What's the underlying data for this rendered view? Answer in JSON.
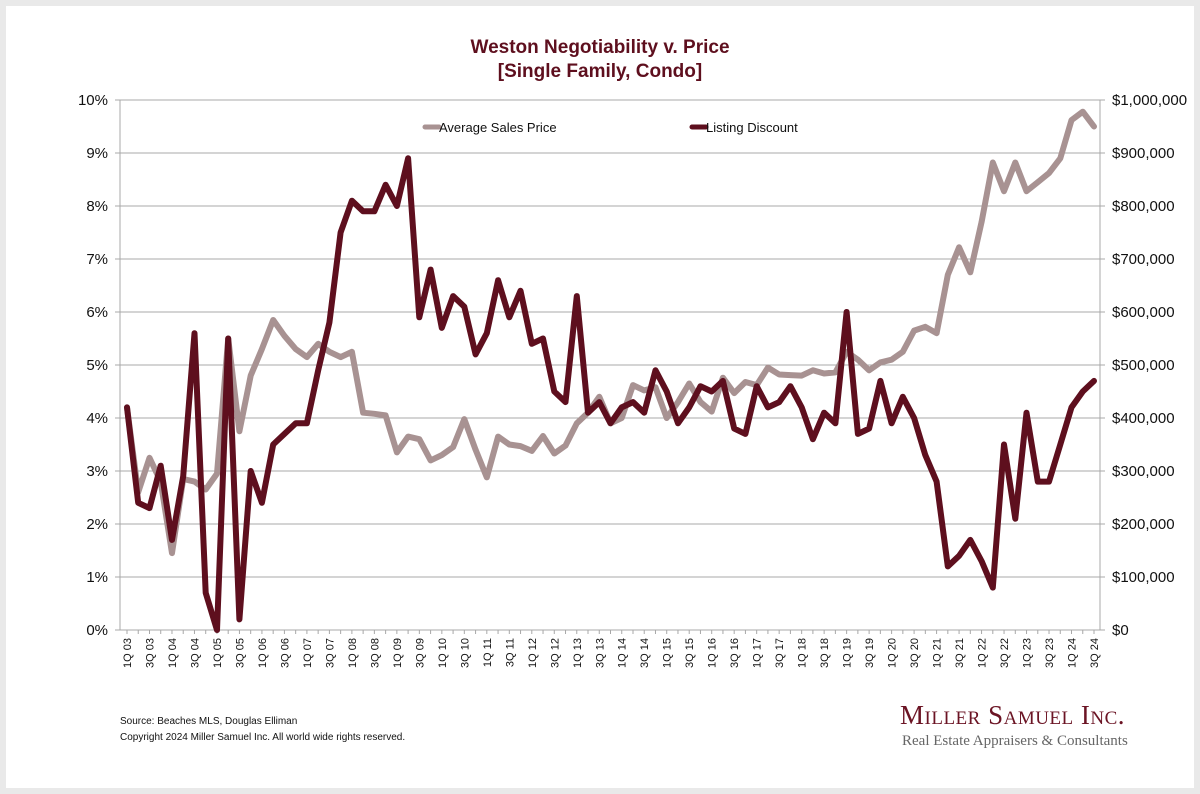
{
  "page": {
    "title_line1": "Weston Negotiability v. Price",
    "title_line2": "[Single Family, Condo]",
    "source_line": "Source: Beaches MLS, Douglas Elliman",
    "copyright_line": "Copyright 2024 Miller Samuel Inc.  All world wide rights reserved.",
    "logo_main": "Miller Samuel Inc.",
    "logo_sub": "Real Estate Appraisers & Consultants"
  },
  "colors": {
    "price": "#a89292",
    "discount": "#5e0f1e",
    "title": "#5e0f1e",
    "grid": "#a8a8a8"
  },
  "chart_data": {
    "type": "line",
    "title": "Weston Negotiability v. Price [Single Family, Condo]",
    "xlabel": "",
    "ylabel_left": "Listing Discount",
    "ylabel_right": "Average Sales Price",
    "ylim_left": [
      0,
      10
    ],
    "ylim_right": [
      0,
      1000000
    ],
    "grid": true,
    "legend_position": "top",
    "left_ticks": [
      "0%",
      "1%",
      "2%",
      "3%",
      "4%",
      "5%",
      "6%",
      "7%",
      "8%",
      "9%",
      "10%"
    ],
    "right_ticks": [
      "$0",
      "$100,000",
      "$200,000",
      "$300,000",
      "$400,000",
      "$500,000",
      "$600,000",
      "$700,000",
      "$800,000",
      "$900,000",
      "$1,000,000"
    ],
    "x_tick_labels": [
      "1Q 03",
      "3Q 03",
      "1Q 04",
      "3Q 04",
      "1Q 05",
      "3Q 05",
      "1Q 06",
      "3Q 06",
      "1Q 07",
      "3Q 07",
      "1Q 08",
      "3Q 08",
      "1Q 09",
      "3Q 09",
      "1Q 10",
      "3Q 10",
      "1Q 11",
      "3Q 11",
      "1Q 12",
      "3Q 12",
      "1Q 13",
      "3Q 13",
      "1Q 14",
      "3Q 14",
      "1Q 15",
      "3Q 15",
      "1Q 16",
      "3Q 16",
      "1Q 17",
      "3Q 17",
      "1Q 18",
      "3Q 18",
      "1Q 19",
      "3Q 19",
      "1Q 20",
      "3Q 20",
      "1Q 21",
      "3Q 21",
      "1Q 22",
      "3Q 22",
      "1Q 23",
      "3Q 23",
      "1Q 24",
      "3Q 24"
    ],
    "x": [
      "1Q 03",
      "2Q 03",
      "3Q 03",
      "4Q 03",
      "1Q 04",
      "2Q 04",
      "3Q 04",
      "4Q 04",
      "1Q 05",
      "2Q 05",
      "3Q 05",
      "4Q 05",
      "1Q 06",
      "2Q 06",
      "3Q 06",
      "4Q 06",
      "1Q 07",
      "2Q 07",
      "3Q 07",
      "4Q 07",
      "1Q 08",
      "2Q 08",
      "3Q 08",
      "4Q 08",
      "1Q 09",
      "2Q 09",
      "3Q 09",
      "4Q 09",
      "1Q 10",
      "2Q 10",
      "3Q 10",
      "4Q 10",
      "1Q 11",
      "2Q 11",
      "3Q 11",
      "4Q 11",
      "1Q 12",
      "2Q 12",
      "3Q 12",
      "4Q 12",
      "1Q 13",
      "2Q 13",
      "3Q 13",
      "4Q 13",
      "1Q 14",
      "2Q 14",
      "3Q 14",
      "4Q 14",
      "1Q 15",
      "2Q 15",
      "3Q 15",
      "4Q 15",
      "1Q 16",
      "2Q 16",
      "3Q 16",
      "4Q 16",
      "1Q 17",
      "2Q 17",
      "3Q 17",
      "4Q 17",
      "1Q 18",
      "2Q 18",
      "3Q 18",
      "4Q 18",
      "1Q 19",
      "2Q 19",
      "3Q 19",
      "4Q 19",
      "1Q 20",
      "2Q 20",
      "3Q 20",
      "4Q 20",
      "1Q 21",
      "2Q 21",
      "3Q 21",
      "4Q 21",
      "1Q 22",
      "2Q 22",
      "3Q 22",
      "4Q 22",
      "1Q 23",
      "2Q 23",
      "3Q 23",
      "4Q 23",
      "1Q 24",
      "2Q 24",
      "3Q 24"
    ],
    "series": [
      {
        "name": "Average Sales Price",
        "axis": "right",
        "values": [
          420000,
          260000,
          325000,
          280000,
          145000,
          285000,
          280000,
          265000,
          295000,
          550000,
          375000,
          480000,
          530000,
          585000,
          555000,
          530000,
          515000,
          540000,
          525000,
          515000,
          525000,
          410000,
          408000,
          405000,
          335000,
          365000,
          360000,
          320000,
          330000,
          345000,
          398000,
          340000,
          288000,
          365000,
          350000,
          347000,
          338000,
          366000,
          333000,
          348000,
          390000,
          410000,
          440000,
          390000,
          400000,
          462000,
          452000,
          458000,
          400000,
          430000,
          465000,
          430000,
          412000,
          476000,
          447000,
          468000,
          462000,
          495000,
          482000,
          481000,
          480000,
          490000,
          484000,
          486000,
          525000,
          510000,
          490000,
          505000,
          510000,
          525000,
          565000,
          572000,
          560000,
          670000,
          722000,
          675000,
          770000,
          882000,
          828000,
          882000,
          828000,
          845000,
          862000,
          890000,
          962000,
          978000,
          950000
        ]
      },
      {
        "name": "Listing Discount",
        "axis": "left",
        "values": [
          4.2,
          2.4,
          2.3,
          3.1,
          1.7,
          2.9,
          5.6,
          0.7,
          0.0,
          5.5,
          0.2,
          3.0,
          2.4,
          3.5,
          3.7,
          3.9,
          3.9,
          4.9,
          5.8,
          7.5,
          8.1,
          7.9,
          7.9,
          8.4,
          8.0,
          8.9,
          5.9,
          6.8,
          5.7,
          6.3,
          6.1,
          5.2,
          5.6,
          6.6,
          5.9,
          6.4,
          5.4,
          5.5,
          4.5,
          4.3,
          6.3,
          4.1,
          4.3,
          3.9,
          4.2,
          4.3,
          4.1,
          4.9,
          4.5,
          3.9,
          4.2,
          4.6,
          4.5,
          4.7,
          3.8,
          3.7,
          4.6,
          4.2,
          4.3,
          4.6,
          4.2,
          3.6,
          4.1,
          3.9,
          6.0,
          3.7,
          3.8,
          4.7,
          3.9,
          4.4,
          4.0,
          3.3,
          2.8,
          1.2,
          1.4,
          1.7,
          1.3,
          0.8,
          3.5,
          2.1,
          4.1,
          2.8,
          2.8,
          3.5,
          4.2,
          4.5,
          4.7
        ]
      }
    ]
  }
}
